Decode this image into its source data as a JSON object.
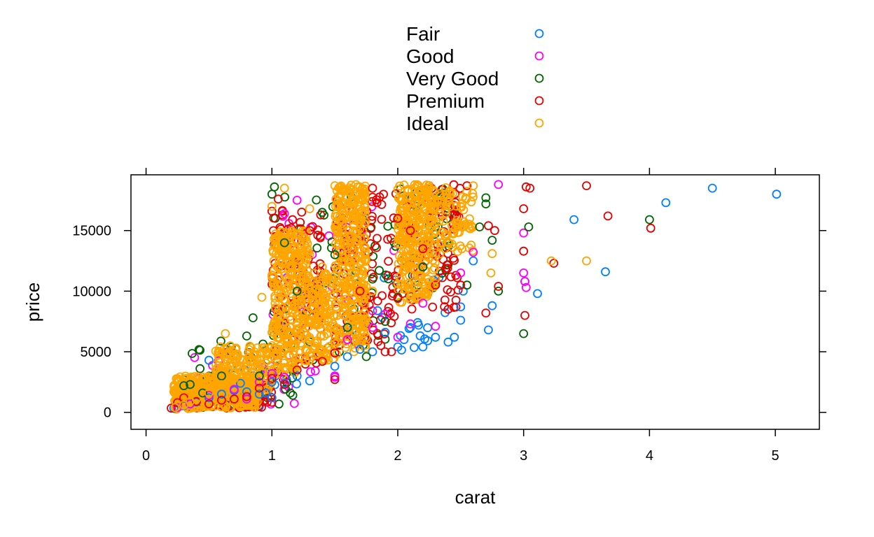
{
  "chart_data": {
    "type": "scatter",
    "xlabel": "carat",
    "ylabel": "price",
    "xlim": [
      -0.12,
      5.35
    ],
    "ylim": [
      -1400,
      19600
    ],
    "x_ticks": [
      0,
      1,
      2,
      3,
      4,
      5
    ],
    "y_ticks": [
      0,
      5000,
      10000,
      15000
    ],
    "legend_position": "top",
    "grid": false,
    "series": [
      {
        "name": "Fair",
        "color": "#0080FF",
        "points": [
          [
            0.22,
            340
          ],
          [
            0.3,
            550
          ],
          [
            0.35,
            680
          ],
          [
            0.4,
            850
          ],
          [
            0.5,
            1200
          ],
          [
            0.5,
            4300
          ],
          [
            0.6,
            1500
          ],
          [
            0.7,
            1800
          ],
          [
            0.75,
            2400
          ],
          [
            0.8,
            1700
          ],
          [
            0.9,
            1500
          ],
          [
            0.95,
            1600
          ],
          [
            1.0,
            2500
          ],
          [
            1.0,
            1200
          ],
          [
            1.1,
            2400
          ],
          [
            1.2,
            3000
          ],
          [
            1.3,
            2600
          ],
          [
            1.5,
            3800
          ],
          [
            1.5,
            3000
          ],
          [
            1.6,
            4600
          ],
          [
            1.7,
            5200
          ],
          [
            1.8,
            5000
          ],
          [
            1.9,
            6600
          ],
          [
            2.0,
            5400
          ],
          [
            2.05,
            6000
          ],
          [
            2.1,
            7000
          ],
          [
            2.2,
            5400
          ],
          [
            2.3,
            6200
          ],
          [
            2.4,
            5800
          ],
          [
            2.45,
            6200
          ],
          [
            2.5,
            7600
          ],
          [
            2.5,
            8700
          ],
          [
            2.52,
            10000
          ],
          [
            2.6,
            12500
          ],
          [
            2.72,
            6800
          ],
          [
            2.75,
            8800
          ],
          [
            3.01,
            10800
          ],
          [
            3.11,
            9800
          ],
          [
            3.4,
            15900
          ],
          [
            3.65,
            11600
          ],
          [
            4.13,
            17300
          ],
          [
            4.5,
            18500
          ],
          [
            5.01,
            18000
          ]
        ]
      },
      {
        "name": "Good",
        "color": "#FF00FF",
        "points": [
          [
            0.25,
            400
          ],
          [
            0.35,
            700
          ],
          [
            0.5,
            1400
          ],
          [
            0.7,
            1900
          ],
          [
            0.8,
            1100
          ],
          [
            0.9,
            2500
          ],
          [
            1.0,
            3200
          ],
          [
            1.1,
            2900
          ],
          [
            1.1,
            16400
          ],
          [
            1.2,
            17500
          ],
          [
            1.5,
            2900
          ],
          [
            1.5,
            3000
          ],
          [
            1.6,
            6000
          ],
          [
            1.8,
            7000
          ],
          [
            1.9,
            8100
          ],
          [
            2.0,
            6200
          ],
          [
            2.1,
            7300
          ],
          [
            2.2,
            9000
          ],
          [
            2.3,
            7100
          ],
          [
            2.5,
            11500
          ],
          [
            2.6,
            13200
          ],
          [
            2.8,
            18800
          ],
          [
            3.0,
            11500
          ],
          [
            3.0,
            14800
          ],
          [
            3.01,
            10800
          ],
          [
            3.02,
            10300
          ]
        ]
      },
      {
        "name": "Very Good",
        "color": "#006400",
        "points": [
          [
            0.3,
            2200
          ],
          [
            0.35,
            2300
          ],
          [
            0.45,
            1600
          ],
          [
            0.6,
            3000
          ],
          [
            0.8,
            6300
          ],
          [
            0.85,
            7800
          ],
          [
            0.9,
            3000
          ],
          [
            1.0,
            18000
          ],
          [
            1.02,
            18600
          ],
          [
            1.1,
            14000
          ],
          [
            1.2,
            10000
          ],
          [
            1.4,
            16500
          ],
          [
            1.5,
            13000
          ],
          [
            1.6,
            7000
          ],
          [
            1.75,
            4600
          ],
          [
            1.8,
            11000
          ],
          [
            1.9,
            7500
          ],
          [
            2.0,
            9500
          ],
          [
            2.2,
            12000
          ],
          [
            2.4,
            14000
          ],
          [
            2.55,
            10500
          ],
          [
            2.65,
            15300
          ],
          [
            2.7,
            17700
          ],
          [
            2.7,
            17200
          ],
          [
            2.75,
            14200
          ],
          [
            2.8,
            10000
          ],
          [
            3.0,
            6500
          ],
          [
            3.04,
            15300
          ],
          [
            4.0,
            15900
          ]
        ]
      },
      {
        "name": "Premium",
        "color": "#E60000",
        "points": [
          [
            0.2,
            350
          ],
          [
            0.25,
            800
          ],
          [
            0.3,
            1200
          ],
          [
            0.4,
            900
          ],
          [
            0.5,
            700
          ],
          [
            0.6,
            1000
          ],
          [
            0.7,
            1100
          ],
          [
            0.8,
            1300
          ],
          [
            0.9,
            2000
          ],
          [
            1.0,
            2800
          ],
          [
            1.0,
            16600
          ],
          [
            1.05,
            17600
          ],
          [
            1.1,
            2300
          ],
          [
            1.2,
            3500
          ],
          [
            1.3,
            15000
          ],
          [
            1.4,
            4200
          ],
          [
            1.5,
            2700
          ],
          [
            1.5,
            4900
          ],
          [
            1.6,
            14000
          ],
          [
            1.7,
            10000
          ],
          [
            1.8,
            18500
          ],
          [
            1.9,
            5000
          ],
          [
            1.95,
            5000
          ],
          [
            2.0,
            9400
          ],
          [
            2.0,
            16000
          ],
          [
            2.1,
            15000
          ],
          [
            2.2,
            13500
          ],
          [
            2.3,
            10500
          ],
          [
            2.4,
            8500
          ],
          [
            2.5,
            10500
          ],
          [
            2.55,
            18700
          ],
          [
            2.7,
            8200
          ],
          [
            2.72,
            15400
          ],
          [
            2.77,
            15000
          ],
          [
            2.8,
            10400
          ],
          [
            3.0,
            16800
          ],
          [
            3.0,
            13300
          ],
          [
            3.01,
            8000
          ],
          [
            3.02,
            18600
          ],
          [
            3.05,
            18500
          ],
          [
            3.24,
            12300
          ],
          [
            3.5,
            18700
          ],
          [
            3.67,
            16200
          ],
          [
            4.01,
            15200
          ]
        ]
      },
      {
        "name": "Ideal",
        "color": "#FFA500",
        "points": [
          [
            0.23,
            400
          ],
          [
            0.3,
            600
          ],
          [
            0.35,
            900
          ],
          [
            0.4,
            1100
          ],
          [
            0.5,
            1600
          ],
          [
            0.6,
            2300
          ],
          [
            0.63,
            6500
          ],
          [
            0.7,
            2800
          ],
          [
            0.8,
            3300
          ],
          [
            0.9,
            4000
          ],
          [
            0.92,
            9500
          ],
          [
            1.0,
            5500
          ],
          [
            1.0,
            17000
          ],
          [
            1.1,
            18500
          ],
          [
            1.2,
            12000
          ],
          [
            1.3,
            16800
          ],
          [
            1.4,
            12000
          ],
          [
            1.5,
            18700
          ],
          [
            1.6,
            14000
          ],
          [
            1.7,
            18600
          ],
          [
            1.8,
            10000
          ],
          [
            2.0,
            18400
          ],
          [
            2.1,
            13000
          ],
          [
            2.2,
            15500
          ],
          [
            2.3,
            11000
          ],
          [
            2.4,
            14000
          ],
          [
            2.5,
            17000
          ],
          [
            2.6,
            18700
          ],
          [
            2.75,
            13100
          ],
          [
            2.74,
            11500
          ],
          [
            3.22,
            12500
          ],
          [
            3.5,
            12500
          ]
        ]
      }
    ],
    "clusters": [
      {
        "series": 4,
        "x": [
          0.22,
          0.9
        ],
        "y": [
          250,
          3000
        ],
        "count": 380
      },
      {
        "series": 4,
        "x": [
          0.55,
          1.0
        ],
        "y": [
          1500,
          5500
        ],
        "count": 160
      },
      {
        "series": 4,
        "x": [
          1.0,
          1.3
        ],
        "y": [
          2800,
          15000
        ],
        "count": 320
      },
      {
        "series": 4,
        "x": [
          1.3,
          1.5
        ],
        "y": [
          4000,
          11500
        ],
        "count": 120
      },
      {
        "series": 4,
        "x": [
          1.5,
          1.75
        ],
        "y": [
          4500,
          18800
        ],
        "count": 320
      },
      {
        "series": 4,
        "x": [
          2.0,
          2.3
        ],
        "y": [
          9000,
          18800
        ],
        "count": 280
      },
      {
        "series": 4,
        "x": [
          2.3,
          2.6
        ],
        "y": [
          13000,
          18700
        ],
        "count": 80
      },
      {
        "series": 3,
        "x": [
          0.3,
          1.0
        ],
        "y": [
          300,
          2500
        ],
        "count": 140
      },
      {
        "series": 3,
        "x": [
          1.0,
          1.4
        ],
        "y": [
          2500,
          17000
        ],
        "count": 110
      },
      {
        "series": 3,
        "x": [
          1.5,
          2.0
        ],
        "y": [
          5000,
          18500
        ],
        "count": 110
      },
      {
        "series": 3,
        "x": [
          2.0,
          2.5
        ],
        "y": [
          8000,
          18800
        ],
        "count": 90
      },
      {
        "series": 2,
        "x": [
          0.3,
          1.2
        ],
        "y": [
          300,
          6000
        ],
        "count": 50
      },
      {
        "series": 2,
        "x": [
          1.0,
          2.0
        ],
        "y": [
          4000,
          18000
        ],
        "count": 60
      },
      {
        "series": 2,
        "x": [
          2.0,
          2.5
        ],
        "y": [
          9000,
          18500
        ],
        "count": 40
      },
      {
        "series": 1,
        "x": [
          0.3,
          1.2
        ],
        "y": [
          300,
          5000
        ],
        "count": 30
      },
      {
        "series": 1,
        "x": [
          1.0,
          2.0
        ],
        "y": [
          3000,
          17000
        ],
        "count": 30
      },
      {
        "series": 0,
        "x": [
          0.3,
          1.2
        ],
        "y": [
          300,
          4000
        ],
        "count": 25
      },
      {
        "series": 0,
        "x": [
          1.5,
          2.4
        ],
        "y": [
          4000,
          12000
        ],
        "count": 25
      }
    ]
  }
}
